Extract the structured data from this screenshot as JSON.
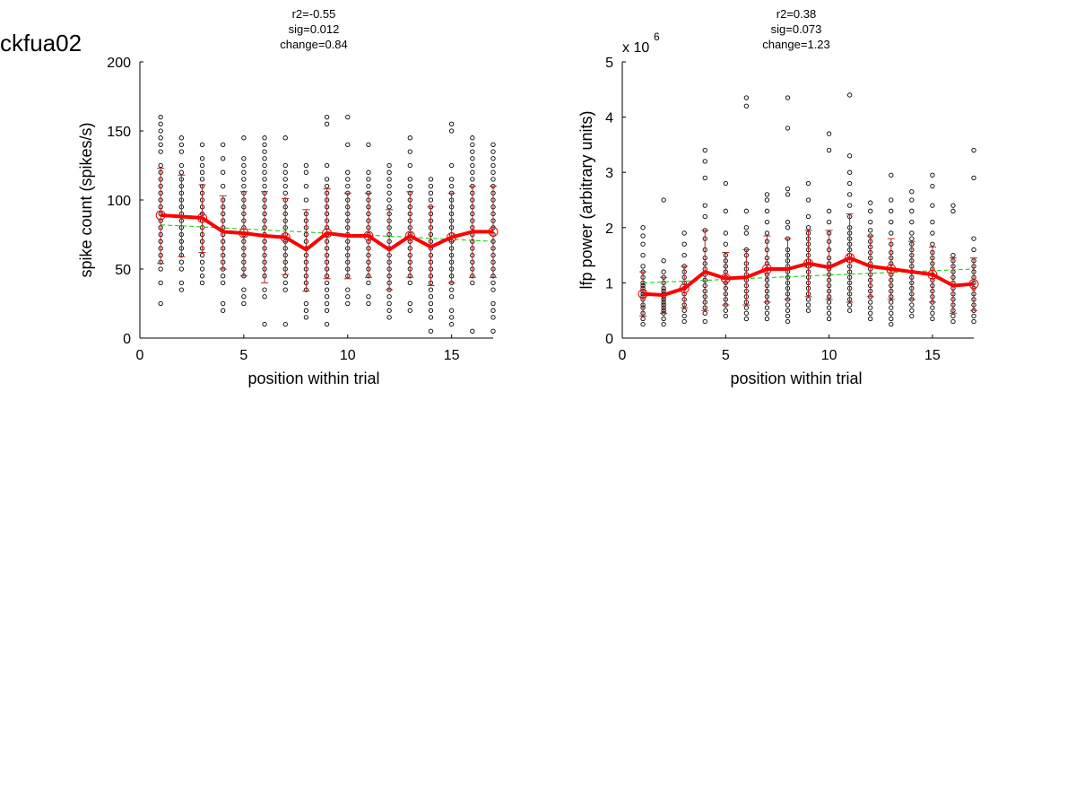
{
  "figure_title": "ckfua02",
  "chart_data": [
    {
      "type": "scatter",
      "title_lines": [
        "r2=-0.55",
        "sig=0.012",
        "change=0.84"
      ],
      "xlabel": "position within trial",
      "ylabel": "spike count (spikes/s)",
      "xlim": [
        0,
        17
      ],
      "ylim": [
        0,
        200
      ],
      "xticks": [
        0,
        5,
        10,
        15
      ],
      "yticks": [
        0,
        50,
        100,
        150,
        200
      ],
      "grid": false,
      "colors": {
        "points": "#000000",
        "mean_line": "#ff0000",
        "error_bars": "#b22222",
        "fit_line": "#00cc00"
      },
      "scatter": {
        "positions": [
          1,
          2,
          3,
          4,
          5,
          6,
          7,
          8,
          9,
          10,
          11,
          12,
          13,
          14,
          15,
          16,
          17
        ],
        "values": [
          [
            25,
            40,
            50,
            55,
            60,
            65,
            70,
            75,
            80,
            85,
            90,
            95,
            100,
            105,
            110,
            115,
            120,
            125,
            135,
            140,
            145,
            150,
            155,
            160
          ],
          [
            35,
            40,
            50,
            55,
            60,
            65,
            70,
            75,
            80,
            85,
            90,
            95,
            100,
            105,
            110,
            115,
            120,
            125,
            135,
            140,
            145
          ],
          [
            40,
            45,
            50,
            55,
            60,
            65,
            70,
            75,
            80,
            85,
            90,
            95,
            100,
            105,
            110,
            115,
            120,
            125,
            130,
            140
          ],
          [
            20,
            25,
            40,
            45,
            50,
            55,
            60,
            65,
            70,
            75,
            80,
            85,
            90,
            95,
            100,
            110,
            120,
            130,
            140
          ],
          [
            25,
            30,
            35,
            45,
            50,
            55,
            60,
            65,
            70,
            75,
            80,
            85,
            90,
            95,
            100,
            105,
            110,
            115,
            120,
            125,
            130,
            145
          ],
          [
            10,
            30,
            35,
            45,
            50,
            55,
            60,
            65,
            70,
            75,
            80,
            85,
            90,
            95,
            100,
            105,
            110,
            115,
            120,
            125,
            130,
            135,
            140,
            145
          ],
          [
            10,
            35,
            40,
            45,
            50,
            55,
            60,
            65,
            70,
            75,
            80,
            85,
            90,
            95,
            100,
            105,
            110,
            115,
            120,
            125,
            145
          ],
          [
            15,
            20,
            25,
            35,
            40,
            45,
            50,
            55,
            60,
            65,
            70,
            75,
            80,
            85,
            90,
            100,
            110,
            120,
            125
          ],
          [
            10,
            20,
            25,
            30,
            35,
            40,
            45,
            50,
            55,
            60,
            65,
            70,
            75,
            80,
            85,
            90,
            95,
            100,
            105,
            110,
            115,
            125,
            155,
            160
          ],
          [
            25,
            30,
            35,
            45,
            50,
            55,
            60,
            65,
            70,
            75,
            80,
            85,
            90,
            95,
            100,
            105,
            110,
            115,
            120,
            140,
            160
          ],
          [
            25,
            30,
            40,
            45,
            50,
            55,
            60,
            65,
            70,
            75,
            80,
            85,
            90,
            95,
            100,
            105,
            110,
            115,
            120,
            140
          ],
          [
            15,
            20,
            25,
            30,
            35,
            40,
            45,
            50,
            55,
            60,
            65,
            70,
            75,
            80,
            85,
            90,
            95,
            100,
            105,
            110,
            115,
            120,
            125
          ],
          [
            20,
            25,
            40,
            45,
            50,
            55,
            60,
            65,
            70,
            75,
            80,
            85,
            90,
            95,
            100,
            105,
            110,
            115,
            125,
            135,
            145
          ],
          [
            5,
            15,
            20,
            25,
            30,
            35,
            40,
            45,
            50,
            55,
            60,
            65,
            70,
            75,
            80,
            85,
            90,
            95,
            100,
            105,
            110,
            115
          ],
          [
            10,
            15,
            20,
            30,
            35,
            40,
            45,
            50,
            55,
            60,
            65,
            70,
            75,
            80,
            85,
            90,
            95,
            100,
            105,
            110,
            115,
            125,
            150,
            155
          ],
          [
            5,
            40,
            45,
            50,
            55,
            60,
            65,
            70,
            75,
            80,
            85,
            90,
            95,
            100,
            105,
            110,
            115,
            120,
            125,
            130,
            135,
            140,
            145
          ],
          [
            5,
            15,
            20,
            25,
            35,
            40,
            45,
            50,
            55,
            60,
            65,
            70,
            75,
            80,
            85,
            90,
            95,
            100,
            105,
            110,
            115,
            120,
            125,
            130,
            135,
            140
          ]
        ]
      },
      "mean": [
        89,
        88,
        87,
        77,
        76,
        74,
        73,
        64,
        76,
        74,
        74,
        64,
        74,
        66,
        73,
        77,
        77
      ],
      "err_lower": [
        54,
        59,
        62,
        50,
        45,
        40,
        46,
        34,
        43,
        43,
        44,
        35,
        44,
        38,
        40,
        44,
        44
      ],
      "err_upper": [
        123,
        118,
        111,
        103,
        106,
        106,
        101,
        93,
        108,
        105,
        105,
        93,
        106,
        95,
        105,
        110,
        110
      ],
      "fit": {
        "x": [
          1,
          17
        ],
        "y": [
          82,
          70
        ]
      }
    },
    {
      "type": "scatter",
      "title_lines": [
        "r2=0.38",
        "sig=0.073",
        "change=1.23"
      ],
      "xlabel": "position within trial",
      "ylabel": "lfp power (arbitrary units)",
      "xlim": [
        0,
        17
      ],
      "ylim": [
        0,
        5
      ],
      "xticks": [
        0,
        5,
        10,
        15
      ],
      "yticks": [
        0,
        1,
        2,
        3,
        4,
        5
      ],
      "y_multiplier": {
        "base": "x 10",
        "exponent": "6"
      },
      "grid": false,
      "colors": {
        "points": "#000000",
        "mean_line": "#ff0000",
        "error_bars": "#b22222",
        "fit_line": "#00cc00"
      },
      "scatter": {
        "positions": [
          1,
          2,
          3,
          4,
          5,
          6,
          7,
          8,
          9,
          10,
          11,
          12,
          13,
          14,
          15,
          16,
          17
        ],
        "values": [
          [
            0.25,
            0.35,
            0.45,
            0.55,
            0.6,
            0.7,
            0.75,
            0.8,
            0.85,
            0.9,
            0.95,
            1.0,
            1.1,
            1.2,
            1.3,
            1.5,
            1.7,
            1.85,
            2.0
          ],
          [
            0.25,
            0.35,
            0.45,
            0.5,
            0.55,
            0.6,
            0.65,
            0.7,
            0.75,
            0.8,
            0.85,
            0.9,
            1.0,
            1.1,
            1.2,
            1.4,
            2.5
          ],
          [
            0.3,
            0.4,
            0.5,
            0.6,
            0.7,
            0.8,
            0.9,
            1.0,
            1.1,
            1.2,
            1.3,
            1.5,
            1.7,
            1.9
          ],
          [
            0.3,
            0.45,
            0.55,
            0.65,
            0.75,
            0.85,
            0.95,
            1.05,
            1.15,
            1.25,
            1.35,
            1.45,
            1.6,
            1.8,
            1.95,
            2.2,
            2.4,
            2.9,
            3.2,
            3.4
          ],
          [
            0.4,
            0.5,
            0.6,
            0.7,
            0.8,
            0.9,
            1.0,
            1.1,
            1.2,
            1.3,
            1.4,
            1.5,
            1.7,
            1.9,
            2.3,
            2.8
          ],
          [
            0.35,
            0.45,
            0.55,
            0.65,
            0.75,
            0.85,
            0.95,
            1.05,
            1.15,
            1.25,
            1.35,
            1.5,
            1.6,
            1.9,
            2.0,
            2.3,
            4.2,
            4.35
          ],
          [
            0.35,
            0.45,
            0.55,
            0.65,
            0.75,
            0.85,
            0.95,
            1.05,
            1.15,
            1.25,
            1.35,
            1.45,
            1.6,
            1.75,
            1.9,
            2.1,
            2.3,
            2.5,
            2.6
          ],
          [
            0.3,
            0.4,
            0.5,
            0.6,
            0.7,
            0.8,
            0.9,
            1.0,
            1.1,
            1.2,
            1.3,
            1.4,
            1.5,
            1.6,
            1.8,
            2.0,
            2.1,
            2.6,
            2.7,
            3.8,
            4.35
          ],
          [
            0.5,
            0.6,
            0.7,
            0.8,
            0.9,
            1.0,
            1.1,
            1.2,
            1.3,
            1.4,
            1.5,
            1.6,
            1.7,
            1.8,
            1.9,
            2.0,
            2.2,
            2.5,
            2.8
          ],
          [
            0.35,
            0.45,
            0.55,
            0.65,
            0.75,
            0.85,
            0.95,
            1.05,
            1.15,
            1.25,
            1.35,
            1.45,
            1.6,
            1.75,
            1.9,
            2.1,
            2.3,
            3.4,
            3.7
          ],
          [
            0.5,
            0.6,
            0.7,
            0.8,
            0.9,
            1.0,
            1.1,
            1.2,
            1.3,
            1.4,
            1.5,
            1.6,
            1.7,
            1.8,
            1.9,
            2.0,
            2.2,
            2.4,
            2.6,
            2.8,
            3.0,
            3.3,
            4.4
          ],
          [
            0.35,
            0.45,
            0.55,
            0.65,
            0.75,
            0.85,
            0.95,
            1.05,
            1.15,
            1.25,
            1.35,
            1.45,
            1.55,
            1.65,
            1.75,
            1.85,
            1.95,
            2.1,
            2.3,
            2.45
          ],
          [
            0.25,
            0.35,
            0.45,
            0.55,
            0.65,
            0.75,
            0.85,
            0.95,
            1.05,
            1.15,
            1.25,
            1.35,
            1.45,
            1.55,
            1.7,
            1.9,
            2.1,
            2.3,
            2.5,
            2.95
          ],
          [
            0.4,
            0.5,
            0.6,
            0.7,
            0.8,
            0.9,
            1.0,
            1.1,
            1.2,
            1.3,
            1.4,
            1.5,
            1.6,
            1.7,
            1.8,
            1.9,
            2.1,
            2.3,
            2.5,
            2.65
          ],
          [
            0.35,
            0.45,
            0.55,
            0.65,
            0.75,
            0.85,
            0.95,
            1.05,
            1.15,
            1.25,
            1.35,
            1.45,
            1.55,
            1.7,
            1.9,
            2.1,
            2.4,
            2.75,
            2.95
          ],
          [
            0.3,
            0.4,
            0.5,
            0.6,
            0.7,
            0.8,
            0.9,
            1.0,
            1.1,
            1.2,
            1.3,
            1.4,
            1.5,
            2.3,
            2.4
          ],
          [
            0.3,
            0.4,
            0.5,
            0.6,
            0.7,
            0.8,
            0.9,
            1.0,
            1.1,
            1.2,
            1.3,
            1.4,
            1.6,
            1.8,
            2.9,
            3.4
          ]
        ]
      },
      "mean": [
        0.8,
        0.78,
        0.9,
        1.2,
        1.08,
        1.1,
        1.25,
        1.25,
        1.35,
        1.28,
        1.45,
        1.3,
        1.25,
        1.2,
        1.15,
        0.95,
        0.98
      ],
      "err_lower": [
        0.4,
        0.45,
        0.55,
        0.5,
        0.6,
        0.6,
        0.65,
        0.7,
        0.75,
        0.7,
        0.65,
        0.75,
        0.7,
        0.7,
        0.65,
        0.45,
        0.5
      ],
      "err_upper": [
        1.2,
        1.1,
        1.3,
        1.95,
        1.55,
        1.6,
        1.85,
        1.8,
        1.95,
        1.95,
        2.25,
        1.85,
        1.8,
        1.75,
        1.65,
        1.45,
        1.45
      ],
      "fit": {
        "x": [
          1,
          17
        ],
        "y": [
          1.0,
          1.25
        ]
      }
    }
  ]
}
